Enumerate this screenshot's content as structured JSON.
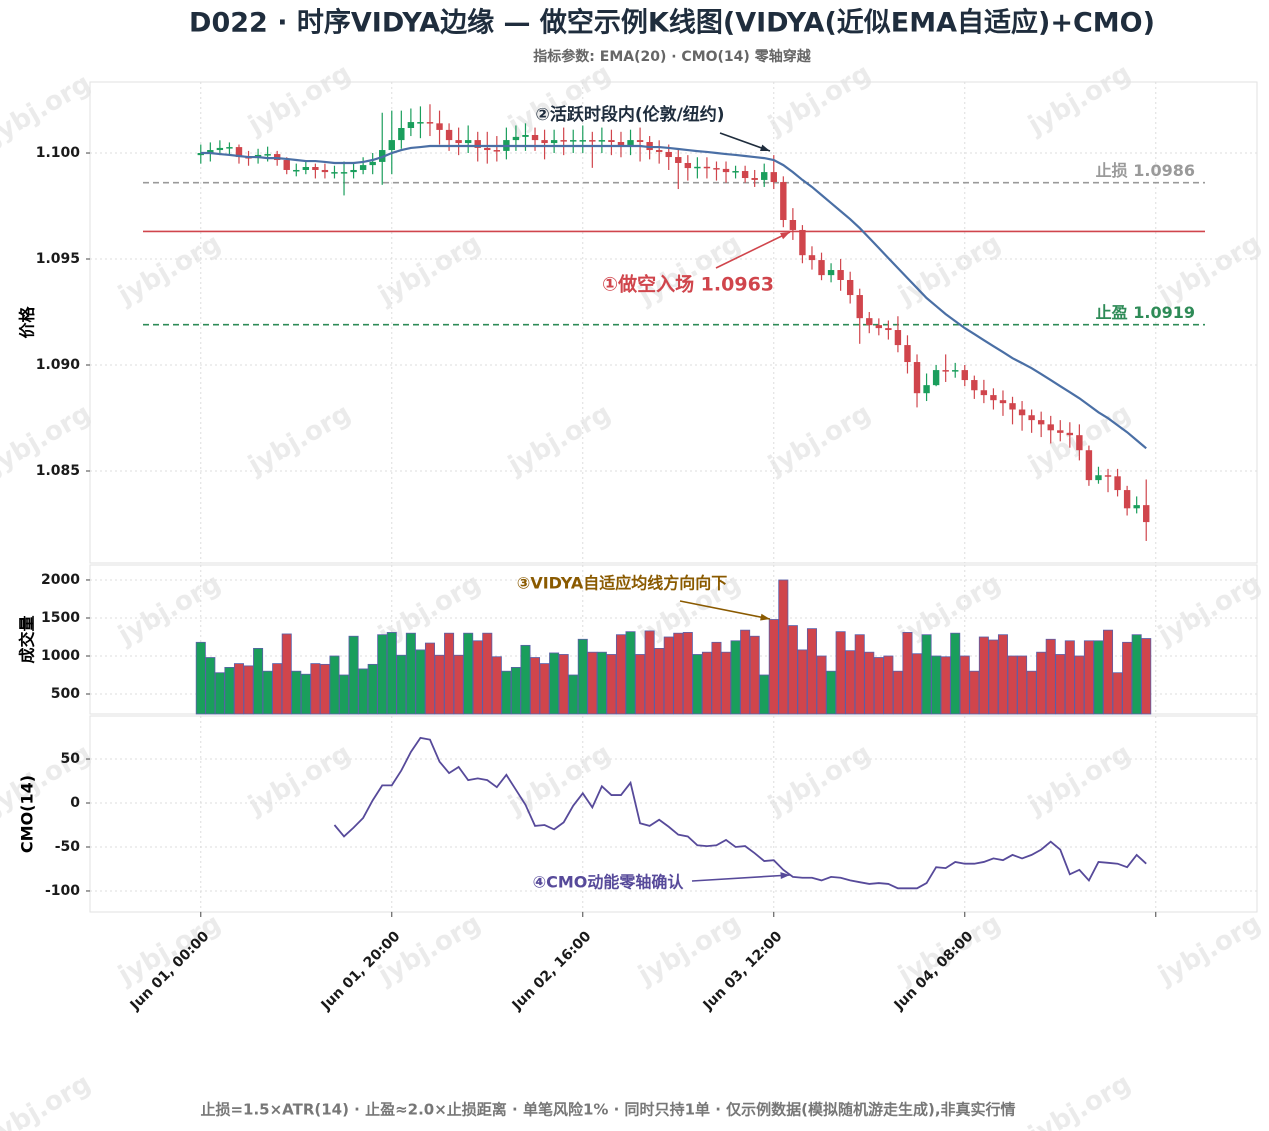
{
  "chart_data": [
    {
      "type": "candlestick",
      "title": "D022 · 时序VIDYA边缘 — 做空示例K线图(VIDYA(近似EMA自适应)+CMO)",
      "subtitle": "指标参数: EMA(20) · CMO(14) 零轴穿越",
      "ylabel": "价格",
      "x": [
        0,
        1,
        2,
        3,
        4,
        5,
        6,
        7,
        8,
        9,
        10,
        11,
        12,
        13,
        14,
        15,
        16,
        17,
        18,
        19,
        20,
        21,
        22,
        23,
        24,
        25,
        26,
        27,
        28,
        29,
        30,
        31,
        32,
        33,
        34,
        35,
        36,
        37,
        38,
        39,
        40,
        41,
        42,
        43,
        44,
        45,
        46,
        47,
        48,
        49,
        50,
        51,
        52,
        53,
        54,
        55,
        56,
        57,
        58,
        59,
        60,
        61,
        62,
        63,
        64,
        65,
        66,
        67,
        68,
        69,
        70,
        71,
        72,
        73,
        74,
        75,
        76,
        77,
        78,
        79,
        80,
        81,
        82,
        83,
        84,
        85,
        86,
        87,
        88,
        89,
        90,
        91,
        92,
        93,
        94,
        95,
        96,
        97,
        98,
        99
      ],
      "open": [
        1.0999,
        1.1,
        1.10014,
        1.10024,
        1.10028,
        1.09981,
        1.09976,
        1.09991,
        1.09995,
        1.09967,
        1.0992,
        1.0992,
        1.09934,
        1.0992,
        1.0991,
        1.0991,
        1.0991,
        1.0992,
        1.09943,
        1.09958,
        1.10014,
        1.10061,
        1.10118,
        1.10146,
        1.10146,
        1.1014,
        1.10109,
        1.10061,
        1.10047,
        1.10061,
        1.10024,
        1.10014,
        1.1001,
        1.10061,
        1.10076,
        1.10085,
        1.10061,
        1.10047,
        1.10061,
        1.10055,
        1.10061,
        1.10061,
        1.10058,
        1.10061,
        1.10052,
        1.10038,
        1.10061,
        1.10052,
        1.10014,
        1.10005,
        1.09981,
        1.09953,
        1.09929,
        1.09935,
        1.09929,
        1.09925,
        1.0991,
        1.09915,
        1.09882,
        1.09873,
        1.0991,
        1.09863,
        1.09684,
        1.09637,
        1.09518,
        1.09495,
        1.09424,
        1.09448,
        1.09401,
        1.0933,
        1.09221,
        1.09188,
        1.09174,
        1.09165,
        1.09094,
        1.09014,
        1.08867,
        1.08905,
        1.08976,
        1.0897,
        1.08976,
        1.08929,
        1.08881,
        1.08858,
        1.08834,
        1.0882,
        1.0879,
        1.08763,
        1.0874,
        1.0872,
        1.08692,
        1.0868,
        1.08669,
        1.08598,
        1.08457,
        1.0848,
        1.08475,
        1.0841,
        1.08324,
        1.08339
      ],
      "high": [
        1.1004,
        1.1005,
        1.1006,
        1.1005,
        1.1004,
        1.1001,
        1.1002,
        1.1003,
        1.1001,
        1.0998,
        1.0995,
        1.0996,
        1.0995,
        1.0995,
        1.0994,
        1.0996,
        1.0995,
        1.0998,
        1.1,
        1.1019,
        1.102,
        1.102,
        1.1021,
        1.1022,
        1.1023,
        1.102,
        1.1014,
        1.1012,
        1.1013,
        1.101,
        1.101,
        1.1008,
        1.1012,
        1.1013,
        1.1014,
        1.1012,
        1.1011,
        1.1011,
        1.1012,
        1.1011,
        1.1013,
        1.101,
        1.1012,
        1.1011,
        1.101,
        1.1011,
        1.1012,
        1.1008,
        1.1006,
        1.1004,
        1.1002,
        1.0999,
        1.0998,
        1.0998,
        1.0996,
        1.0996,
        1.0994,
        1.0994,
        1.0992,
        1.0995,
        1.0999,
        1.0989,
        1.0974,
        1.0966,
        1.0956,
        1.0953,
        1.0948,
        1.095,
        1.0944,
        1.0936,
        1.0925,
        1.0922,
        1.0921,
        1.0923,
        1.0914,
        1.0905,
        1.0896,
        1.09,
        1.0905,
        1.0901,
        1.09,
        1.0895,
        1.0893,
        1.0889,
        1.0888,
        1.0885,
        1.0883,
        1.0879,
        1.0878,
        1.0876,
        1.0874,
        1.0873,
        1.0872,
        1.0862,
        1.0852,
        1.0851,
        1.0851,
        1.0843,
        1.0838,
        1.0846
      ],
      "low": [
        1.0995,
        1.0996,
        1.0999,
        1.0999,
        1.0995,
        1.0994,
        1.0995,
        1.0996,
        1.0994,
        1.099,
        1.0989,
        1.099,
        1.0988,
        1.0988,
        1.0988,
        1.098,
        1.0988,
        1.099,
        1.099,
        1.0985,
        1.099,
        1.1002,
        1.1008,
        1.1007,
        1.1008,
        1.1004,
        1.1001,
        1.0999,
        1.1,
        1.0996,
        1.0995,
        1.0996,
        1.0997,
        1.1001,
        1.1001,
        1.1001,
        1.0997,
        1.1,
        1.0999,
        1.1,
        1.1,
        1.0993,
        1.1,
        1.0999,
        1.0998,
        1.0999,
        1.0996,
        1.0997,
        1.0995,
        1.0992,
        1.0983,
        1.0987,
        1.0988,
        1.0988,
        1.0987,
        1.0986,
        1.0988,
        1.0986,
        1.0984,
        1.0984,
        1.0983,
        1.0965,
        1.0959,
        1.0948,
        1.0945,
        1.094,
        1.0939,
        1.0935,
        1.0929,
        1.091,
        1.0915,
        1.0914,
        1.0912,
        1.0906,
        1.0896,
        1.088,
        1.0883,
        1.089,
        1.0892,
        1.0894,
        1.089,
        1.0884,
        1.0882,
        1.0879,
        1.0876,
        1.0872,
        1.0869,
        1.0868,
        1.0866,
        1.0863,
        1.0864,
        1.0861,
        1.0855,
        1.0843,
        1.0844,
        1.084,
        1.0838,
        1.0829,
        1.083,
        1.0817
      ],
      "close": [
        1.1,
        1.10014,
        1.10024,
        1.10028,
        1.09981,
        1.09976,
        1.09991,
        1.09995,
        1.09967,
        1.0992,
        1.0992,
        1.09934,
        1.0992,
        1.0991,
        1.0991,
        1.0991,
        1.0992,
        1.09943,
        1.09958,
        1.10014,
        1.10061,
        1.10118,
        1.10146,
        1.10146,
        1.1014,
        1.10109,
        1.10061,
        1.10047,
        1.10061,
        1.10024,
        1.10014,
        1.1001,
        1.10061,
        1.10076,
        1.10085,
        1.10061,
        1.10047,
        1.10061,
        1.10055,
        1.10061,
        1.10061,
        1.10058,
        1.10061,
        1.10052,
        1.10038,
        1.10061,
        1.10052,
        1.10014,
        1.10005,
        1.09981,
        1.09953,
        1.09929,
        1.09935,
        1.09929,
        1.09925,
        1.0991,
        1.09915,
        1.09882,
        1.09873,
        1.0991,
        1.09863,
        1.09684,
        1.09637,
        1.09518,
        1.09495,
        1.09424,
        1.09448,
        1.09401,
        1.0933,
        1.09221,
        1.09188,
        1.09174,
        1.09165,
        1.09094,
        1.09014,
        1.08867,
        1.08905,
        1.08976,
        1.0897,
        1.08976,
        1.08929,
        1.08881,
        1.08858,
        1.08834,
        1.0882,
        1.0879,
        1.08763,
        1.0874,
        1.0872,
        1.08692,
        1.0868,
        1.08669,
        1.08598,
        1.08457,
        1.0848,
        1.08475,
        1.0841,
        1.08324,
        1.08339,
        1.08259
      ],
      "up_color": "#1a9e5c",
      "down_color": "#d0454c",
      "overlay": {
        "color": "#4a6fa5",
        "values": [
          1.1,
          1.1,
          1.09995,
          1.09991,
          1.09986,
          1.09981,
          1.09981,
          1.09976,
          1.09976,
          1.09972,
          1.09967,
          1.09962,
          1.09962,
          1.09958,
          1.09953,
          1.09953,
          1.09953,
          1.09958,
          1.09967,
          1.09981,
          1.1,
          1.10014,
          1.10024,
          1.10028,
          1.10033,
          1.10033,
          1.10033,
          1.10033,
          1.10033,
          1.10033,
          1.10033,
          1.10033,
          1.10033,
          1.10033,
          1.10033,
          1.10033,
          1.10033,
          1.10033,
          1.10033,
          1.10033,
          1.10033,
          1.10033,
          1.10033,
          1.10033,
          1.10033,
          1.10033,
          1.10033,
          1.10028,
          1.10028,
          1.10024,
          1.10019,
          1.10014,
          1.10009,
          1.10005,
          1.1,
          1.09995,
          1.09991,
          1.09986,
          1.09981,
          1.09976,
          1.09967,
          1.09943,
          1.0991,
          1.09873,
          1.0984,
          1.09802,
          1.09764,
          1.09726,
          1.09688,
          1.09646,
          1.09599,
          1.09552,
          1.09504,
          1.09457,
          1.0941,
          1.09363,
          1.09316,
          1.09278,
          1.0924,
          1.09207,
          1.09174,
          1.09146,
          1.09117,
          1.09089,
          1.09061,
          1.09032,
          1.09009,
          1.08985,
          1.08957,
          1.08929,
          1.089,
          1.08872,
          1.08843,
          1.0881,
          1.08777,
          1.08749,
          1.08716,
          1.08683,
          1.08645,
          1.08607
        ]
      },
      "lines": [
        {
          "value": 1.0986,
          "label": "止损 1.0986",
          "color": "#9a9a9a",
          "style": "dashed"
        },
        {
          "value": 1.0963,
          "color": "#d0454c",
          "style": "solid"
        },
        {
          "value": 1.0919,
          "label": "止盈 1.0919",
          "color": "#2e8b57",
          "style": "dashed"
        }
      ],
      "annotations": [
        {
          "text": "②活跃时段内(伦敦/纽约)",
          "color": "#1f2d3d"
        },
        {
          "text": "①做空入场 1.0963",
          "color": "#d0454c"
        }
      ],
      "xlim": [
        -11.6,
        110.6
      ],
      "ylim": [
        1.08066,
        1.10335
      ],
      "yticks": [
        {
          "value": 1.1,
          "label": "1.100"
        },
        1.095,
        {
          "value": 1.09,
          "label": "1.090"
        },
        1.085
      ],
      "grid": true
    },
    {
      "type": "bar",
      "ylabel": "成交量",
      "values": [
        1180,
        980,
        780,
        850,
        900,
        870,
        1100,
        800,
        900,
        1290,
        800,
        760,
        900,
        890,
        1000,
        750,
        1260,
        830,
        890,
        1280,
        1310,
        1010,
        1300,
        1080,
        1170,
        1010,
        1300,
        1010,
        1300,
        1200,
        1300,
        990,
        800,
        850,
        1140,
        980,
        900,
        1040,
        1020,
        750,
        1220,
        1050,
        1050,
        1020,
        1280,
        1320,
        1020,
        1330,
        1100,
        1250,
        1300,
        1310,
        1020,
        1050,
        1180,
        1050,
        1200,
        1340,
        1260,
        750,
        1480,
        2000,
        1400,
        1080,
        1360,
        1000,
        800,
        1320,
        1070,
        1280,
        1050,
        980,
        1000,
        800,
        1310,
        1030,
        1280,
        1000,
        990,
        1300,
        1000,
        800,
        1250,
        1210,
        1280,
        1000,
        1000,
        800,
        1050,
        1220,
        1020,
        1200,
        1000,
        1200,
        1200,
        1340,
        780,
        1180,
        1280,
        1230
      ],
      "annotations": [
        {
          "text": "③VIDYA自适应均线方向向下",
          "color": "#8a5a00"
        }
      ],
      "xlim": [
        -11.6,
        110.6
      ],
      "ylim": [
        237,
        2197
      ],
      "yticks": [
        500,
        1000,
        1500,
        2000
      ],
      "grid": true
    },
    {
      "type": "line",
      "ylabel": "CMO(14)",
      "color": "#574a9a",
      "values": [
        null,
        null,
        null,
        null,
        null,
        null,
        null,
        null,
        null,
        null,
        null,
        null,
        null,
        null,
        -25,
        -38,
        -28,
        -17,
        3,
        20,
        20,
        37,
        58,
        74,
        72,
        47,
        34,
        41,
        26,
        28,
        26,
        18,
        32,
        15,
        -2,
        -26,
        -25,
        -30,
        -22,
        -3,
        11,
        -5,
        19,
        9,
        9,
        23,
        -23,
        -26,
        -19,
        -27,
        -36,
        -38,
        -48,
        -49,
        -48,
        -42,
        -50,
        -49,
        -57,
        -66,
        -65,
        -76,
        -84,
        -85,
        -85,
        -88,
        -84,
        -85,
        -88,
        -90,
        -92,
        -91,
        -92,
        -97,
        -97,
        -97,
        -91,
        -73,
        -74,
        -67,
        -69,
        -69,
        -67,
        -63,
        -65,
        -59,
        -63,
        -59,
        -53,
        -44,
        -53,
        -81,
        -76,
        -88,
        -67,
        -68,
        -69,
        -73,
        -59,
        -69
      ],
      "annotations": [
        {
          "text": "④CMO动能零轴确认",
          "color": "#574a9a"
        }
      ],
      "xlim": [
        -11.6,
        110.6
      ],
      "ylim": [
        -123.9,
        98.9
      ],
      "yticks": [
        -100,
        -50,
        0,
        50
      ],
      "xticks": [
        {
          "value": 0,
          "label": "Jun 01, 00:00"
        },
        {
          "value": 20,
          "label": "Jun 01, 20:00"
        },
        {
          "value": 40,
          "label": "Jun 02, 16:00"
        },
        {
          "value": 60,
          "label": "Jun 03, 12:00"
        },
        {
          "value": 80,
          "label": "Jun 04, 08:00"
        },
        {
          "value": 100,
          "label": null
        }
      ],
      "grid": true
    }
  ],
  "footnote": "止损=1.5×ATR(14) · 止盈≈2.0×止损距离 · 单笔风险1% · 同时只持1单 · 仅示例数据(模拟随机游走生成),非真实行情",
  "watermark": "jybj.org"
}
